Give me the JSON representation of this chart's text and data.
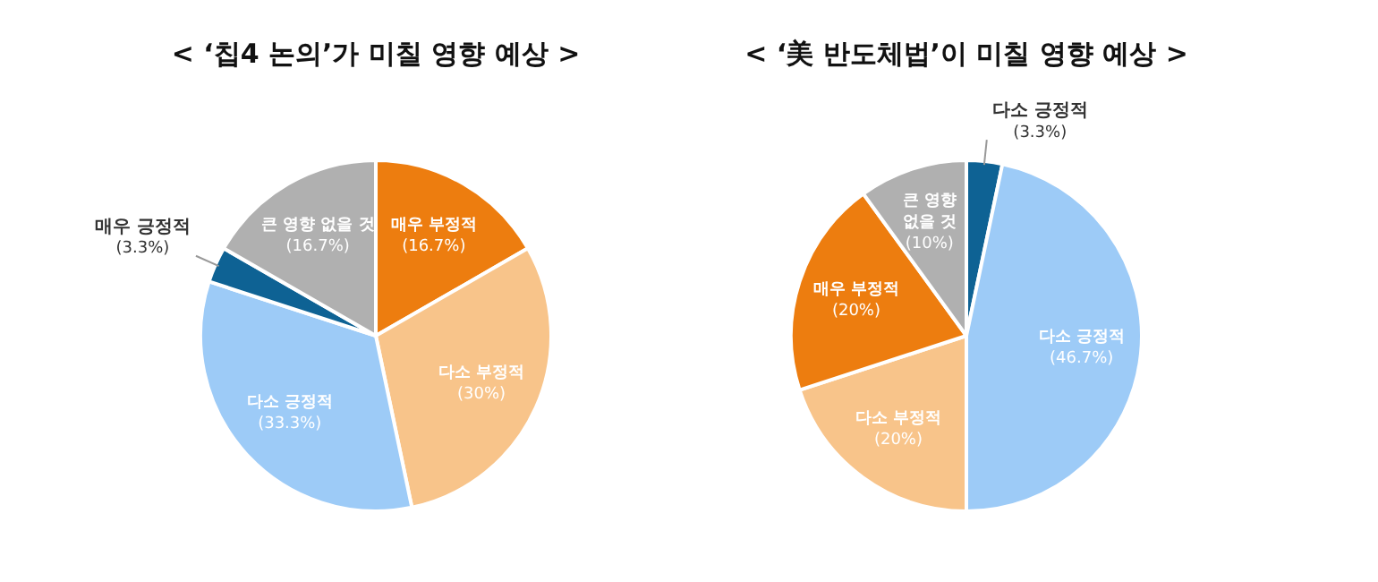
{
  "chart_data": [
    {
      "type": "pie",
      "title": "< ‘칩4 논의’가 미칠 영향 예상 >",
      "categories": [
        "매우 부정적",
        "다소 부정적",
        "다소 긍정적",
        "매우 긍정적",
        "큰 영향 없을 것"
      ],
      "values": [
        16.7,
        30,
        33.3,
        3.3,
        16.7
      ],
      "colors": [
        "#ed7d0f",
        "#f8c48a",
        "#9dcbf7",
        "#0e6294",
        "#b0b0b0"
      ],
      "value_labels": [
        "(16.7%)",
        "(30%)",
        "(33.3%)",
        "(3.3%)",
        "(16.7%)"
      ],
      "legend": false
    },
    {
      "type": "pie",
      "title": "< ‘美 반도체법’이 미칠 영향 예상 >",
      "categories": [
        "다소 긍정적",
        "다소 긍정적",
        "다소 부정적",
        "매우 부정적",
        "큰 영향 없을 것"
      ],
      "values": [
        3.3,
        46.7,
        20,
        20,
        10
      ],
      "colors": [
        "#0e6294",
        "#9dcbf7",
        "#f8c48a",
        "#ed7d0f",
        "#b0b0b0"
      ],
      "value_labels": [
        "(3.3%)",
        "(46.7%)",
        "(20%)",
        "(20%)",
        "(10%)"
      ],
      "legend": false
    }
  ]
}
